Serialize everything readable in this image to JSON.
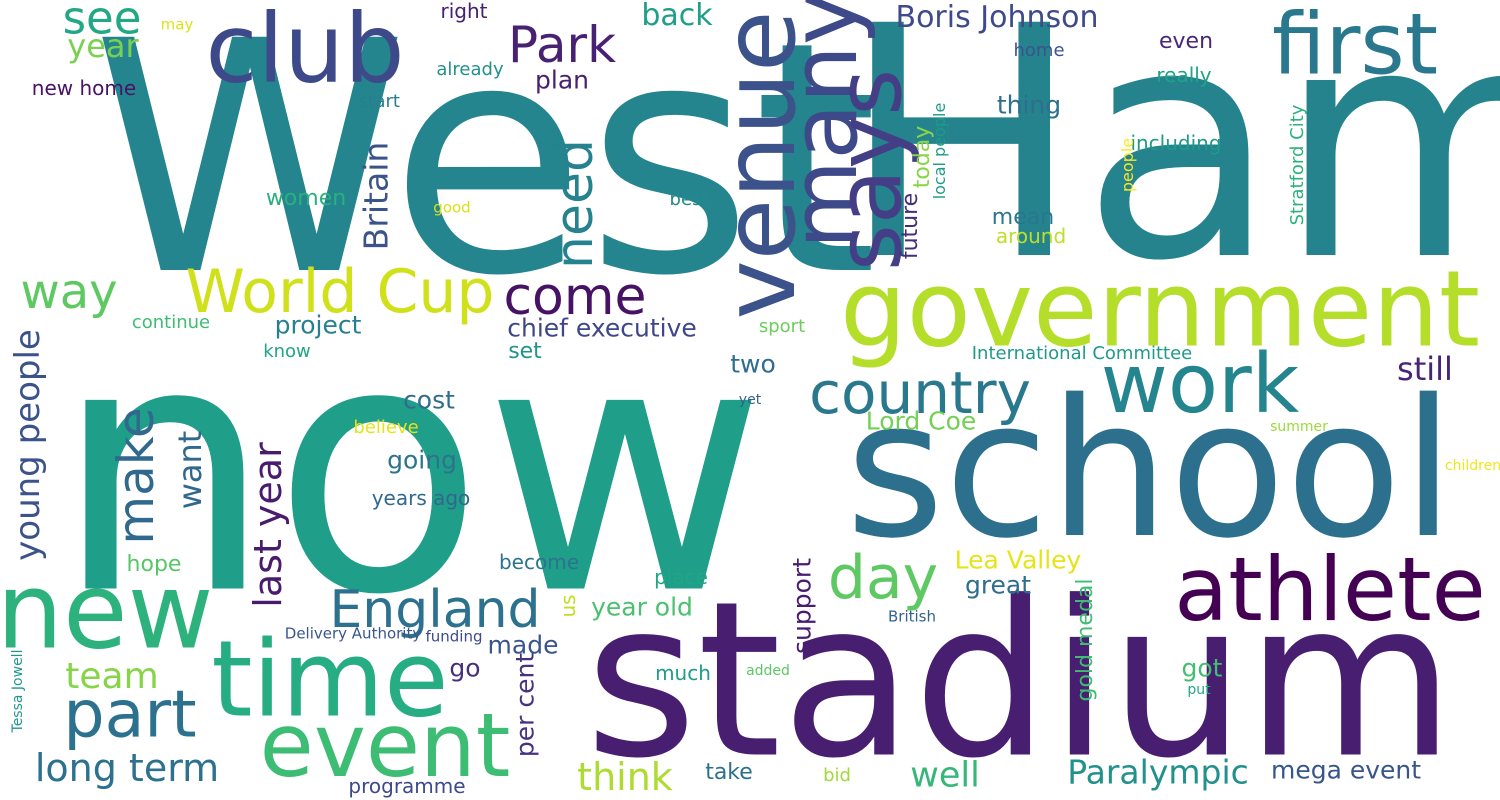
{
  "words": [
    {
      "text": "West",
      "color": "#25858e",
      "vertical": false
    },
    {
      "text": "Ham",
      "color": "#25838e",
      "vertical": false
    },
    {
      "text": "now",
      "color": "#1f9e89",
      "vertical": false
    },
    {
      "text": "stadium",
      "color": "#481f70",
      "vertical": false
    },
    {
      "text": "school",
      "color": "#2d708e",
      "vertical": false
    },
    {
      "text": "government",
      "color": "#b5de2b",
      "vertical": false
    },
    {
      "text": "new",
      "color": "#2db27d",
      "vertical": false
    },
    {
      "text": "time",
      "color": "#26ad81",
      "vertical": false
    },
    {
      "text": "athlete",
      "color": "#440154",
      "vertical": false
    },
    {
      "text": "event",
      "color": "#3dbc74",
      "vertical": false
    },
    {
      "text": "venue",
      "color": "#3b528b",
      "vertical": true
    },
    {
      "text": "club",
      "color": "#3e4989",
      "vertical": false
    },
    {
      "text": "work",
      "color": "#25858e",
      "vertical": false
    },
    {
      "text": "first",
      "color": "#2a788e",
      "vertical": false
    },
    {
      "text": "many",
      "color": "#3e4989",
      "vertical": true
    },
    {
      "text": "says",
      "color": "#433e85",
      "vertical": true
    },
    {
      "text": "part",
      "color": "#2c728e",
      "vertical": false
    },
    {
      "text": "country",
      "color": "#2a788e",
      "vertical": false
    },
    {
      "text": "World Cup",
      "color": "#d0e11c",
      "vertical": false
    },
    {
      "text": "day",
      "color": "#5ec962",
      "vertical": false
    },
    {
      "text": "England",
      "color": "#2c718e",
      "vertical": false
    },
    {
      "text": "come",
      "color": "#471164",
      "vertical": false
    },
    {
      "text": "Park",
      "color": "#482173",
      "vertical": false
    },
    {
      "text": "need",
      "color": "#26828e",
      "vertical": true
    },
    {
      "text": "make",
      "color": "#31688e",
      "vertical": true
    },
    {
      "text": "young people",
      "color": "#3b528b",
      "vertical": true
    },
    {
      "text": "long term",
      "color": "#2c728e",
      "vertical": false
    },
    {
      "text": "way",
      "color": "#5ec962",
      "vertical": false
    },
    {
      "text": "see",
      "color": "#22a884",
      "vertical": false
    },
    {
      "text": "Paralympic",
      "color": "#21918c",
      "vertical": false
    },
    {
      "text": "last year",
      "color": "#481b6d",
      "vertical": true
    },
    {
      "text": "think",
      "color": "#addc30",
      "vertical": false
    },
    {
      "text": "well",
      "color": "#35b779",
      "vertical": false
    },
    {
      "text": "team",
      "color": "#86d549",
      "vertical": false
    },
    {
      "text": "Britain",
      "color": "#3b528b",
      "vertical": true
    },
    {
      "text": "still",
      "color": "#482475",
      "vertical": false
    },
    {
      "text": "Boris Johnson",
      "color": "#3e4a89",
      "vertical": false
    },
    {
      "text": "back",
      "color": "#1f9e89",
      "vertical": false
    },
    {
      "text": "want",
      "color": "#31688e",
      "vertical": true
    },
    {
      "text": "Lord Coe",
      "color": "#74d055",
      "vertical": false
    },
    {
      "text": "year",
      "color": "#7ad151",
      "vertical": false
    },
    {
      "text": "chief executive",
      "color": "#3f4788",
      "vertical": false
    },
    {
      "text": "project",
      "color": "#27808e",
      "vertical": false
    },
    {
      "text": "mega event",
      "color": "#39568c",
      "vertical": false
    },
    {
      "text": "per cent",
      "color": "#46327e",
      "vertical": true
    },
    {
      "text": "two",
      "color": "#2e6e8e",
      "vertical": false
    },
    {
      "text": "made",
      "color": "#3a548c",
      "vertical": false
    },
    {
      "text": "plan",
      "color": "#482071",
      "vertical": false
    },
    {
      "text": "going",
      "color": "#2c738e",
      "vertical": false
    },
    {
      "text": "cost",
      "color": "#2f6c8e",
      "vertical": false
    },
    {
      "text": "Lea Valley",
      "color": "#e5e419",
      "vertical": false
    },
    {
      "text": "great",
      "color": "#2e6f8e",
      "vertical": false
    },
    {
      "text": "year old",
      "color": "#4ac16d",
      "vertical": false
    },
    {
      "text": "gold medal",
      "color": "#3fbc73",
      "vertical": true
    },
    {
      "text": "support",
      "color": "#481c6e",
      "vertical": true
    },
    {
      "text": "got",
      "color": "#42be71",
      "vertical": false
    },
    {
      "text": "today",
      "color": "#89d548",
      "vertical": true
    },
    {
      "text": "future",
      "color": "#472c7a",
      "vertical": true
    },
    {
      "text": "thing",
      "color": "#2e6e8e",
      "vertical": false
    },
    {
      "text": "mean",
      "color": "#2a768e",
      "vertical": false
    },
    {
      "text": "go",
      "color": "#472f7d",
      "vertical": false
    },
    {
      "text": "women",
      "color": "#2ab07f",
      "vertical": false
    },
    {
      "text": "take",
      "color": "#2d708e",
      "vertical": false
    },
    {
      "text": "set",
      "color": "#1f958b",
      "vertical": false
    },
    {
      "text": "hope",
      "color": "#56c667",
      "vertical": false
    },
    {
      "text": "become",
      "color": "#2b748e",
      "vertical": false
    },
    {
      "text": "much",
      "color": "#1e9c89",
      "vertical": false
    },
    {
      "text": "place",
      "color": "#21a685",
      "vertical": false
    },
    {
      "text": "us",
      "color": "#c2df23",
      "vertical": true
    },
    {
      "text": "even",
      "color": "#482878",
      "vertical": false
    },
    {
      "text": "really",
      "color": "#20a386",
      "vertical": false
    },
    {
      "text": "Stratford City",
      "color": "#2db27d",
      "vertical": true
    },
    {
      "text": "local people",
      "color": "#1e9b8a",
      "vertical": true
    },
    {
      "text": "including",
      "color": "#1f9a8a",
      "vertical": false
    },
    {
      "text": "around",
      "color": "#bddf26",
      "vertical": false
    },
    {
      "text": "International Committee",
      "color": "#1f9a8a",
      "vertical": false
    },
    {
      "text": "best",
      "color": "#23898e",
      "vertical": false
    },
    {
      "text": "people",
      "color": "#fde725",
      "vertical": true
    },
    {
      "text": "already",
      "color": "#21918c",
      "vertical": false
    },
    {
      "text": "start",
      "color": "#277f8e",
      "vertical": false
    },
    {
      "text": "home",
      "color": "#3b528b",
      "vertical": false
    },
    {
      "text": "sport",
      "color": "#6ccd5a",
      "vertical": false
    },
    {
      "text": "know",
      "color": "#20a486",
      "vertical": false
    },
    {
      "text": "continue",
      "color": "#3dbc74",
      "vertical": false
    },
    {
      "text": "new home",
      "color": "#471365",
      "vertical": false
    },
    {
      "text": "right",
      "color": "#482173",
      "vertical": false
    },
    {
      "text": "may",
      "color": "#dde318",
      "vertical": false
    },
    {
      "text": "good",
      "color": "#d8e219",
      "vertical": false
    },
    {
      "text": "years ago",
      "color": "#31688e",
      "vertical": false
    },
    {
      "text": "believe",
      "color": "#e2e418",
      "vertical": false
    },
    {
      "text": "bid",
      "color": "#a0da39",
      "vertical": false
    },
    {
      "text": "programme",
      "color": "#3e4989",
      "vertical": false
    },
    {
      "text": "British",
      "color": "#33638d",
      "vertical": false
    },
    {
      "text": "Delivery Authority",
      "color": "#39568c",
      "vertical": false
    },
    {
      "text": "funding",
      "color": "#3e4989",
      "vertical": false
    },
    {
      "text": "added",
      "color": "#5ac864",
      "vertical": false
    },
    {
      "text": "put",
      "color": "#22a884",
      "vertical": false
    },
    {
      "text": "summer",
      "color": "#9bd93c",
      "vertical": false
    },
    {
      "text": "children",
      "color": "#f1e51d",
      "vertical": false
    },
    {
      "text": "Tessa Jowell",
      "color": "#1f968b",
      "vertical": true
    },
    {
      "text": "yet",
      "color": "#33638d",
      "vertical": false
    }
  ]
}
